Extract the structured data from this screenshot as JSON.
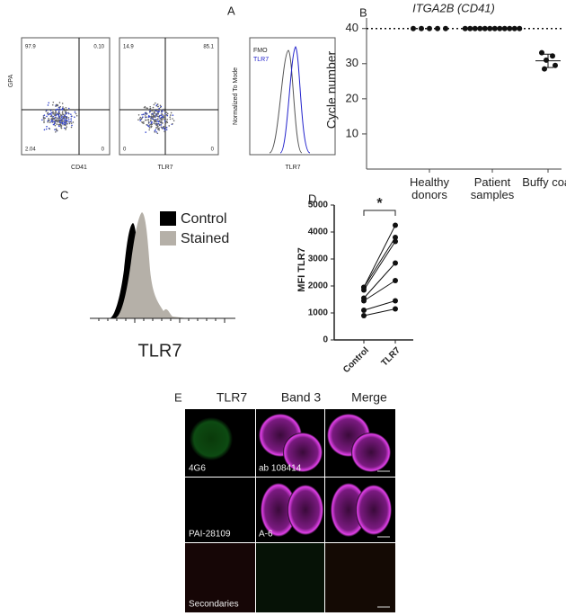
{
  "panel_labels": [
    "A",
    "B",
    "C",
    "D",
    "E"
  ],
  "flow": {
    "plots": [
      {
        "y_label": "GPA",
        "x_label": "CD41",
        "quadrants": [
          "97.9",
          "0.10",
          "2.04",
          "0"
        ]
      },
      {
        "x_label": "TLR7",
        "quadrants": [
          "14.9",
          "85.1",
          "0",
          "0"
        ]
      },
      {
        "y_label": "Normalized To Mode",
        "x_label": "TLR7",
        "legend": [
          "FMO",
          "TLR7"
        ]
      }
    ]
  },
  "histogram": {
    "legend": [
      "Control",
      "Stained"
    ],
    "x_label": "TLR7"
  },
  "chart_data": [
    {
      "type": "scatter",
      "title": "ITGA2B (CD41)",
      "ylabel": "Cycle number",
      "categories": [
        "Healthy donors",
        "Patient samples",
        "Buffy coat"
      ],
      "values": [
        [
          40,
          40,
          40,
          40,
          40
        ],
        [
          40,
          40,
          40,
          40,
          40,
          40,
          40,
          40,
          40,
          40,
          40,
          40
        ],
        [
          33.1,
          32.2,
          31,
          29.5,
          28.5
        ]
      ],
      "mean": [
        null,
        null,
        30.8
      ],
      "error": [
        null,
        null,
        1.9
      ],
      "threshold": 40,
      "color": "#111111",
      "ylim": [
        0,
        43
      ],
      "yticks": [
        10,
        20,
        30,
        40
      ]
    },
    {
      "type": "line",
      "ylabel": "MFI TLR7",
      "categories": [
        "Control",
        "TLR7"
      ],
      "series": [
        {
          "color": "#111111",
          "values": [
            900,
            1150
          ]
        },
        {
          "color": "#111111",
          "values": [
            1100,
            1450
          ]
        },
        {
          "color": "#111111",
          "values": [
            1450,
            2200
          ]
        },
        {
          "color": "#111111",
          "values": [
            1550,
            2850
          ]
        },
        {
          "color": "#111111",
          "values": [
            1850,
            3650
          ]
        },
        {
          "color": "#111111",
          "values": [
            1950,
            3800
          ]
        },
        {
          "color": "#111111",
          "values": [
            1950,
            4250
          ]
        }
      ],
      "annotation": "*",
      "ylim": [
        0,
        5000
      ],
      "yticks": [
        0,
        1000,
        2000,
        3000,
        4000,
        5000
      ]
    }
  ],
  "microscopy": {
    "columns": [
      "TLR7",
      "Band 3",
      "Merge"
    ],
    "labels": [
      [
        "4G6",
        "ab 108414"
      ],
      [
        "PAI-28109",
        "A-6"
      ],
      [
        "Secondaries"
      ]
    ]
  }
}
